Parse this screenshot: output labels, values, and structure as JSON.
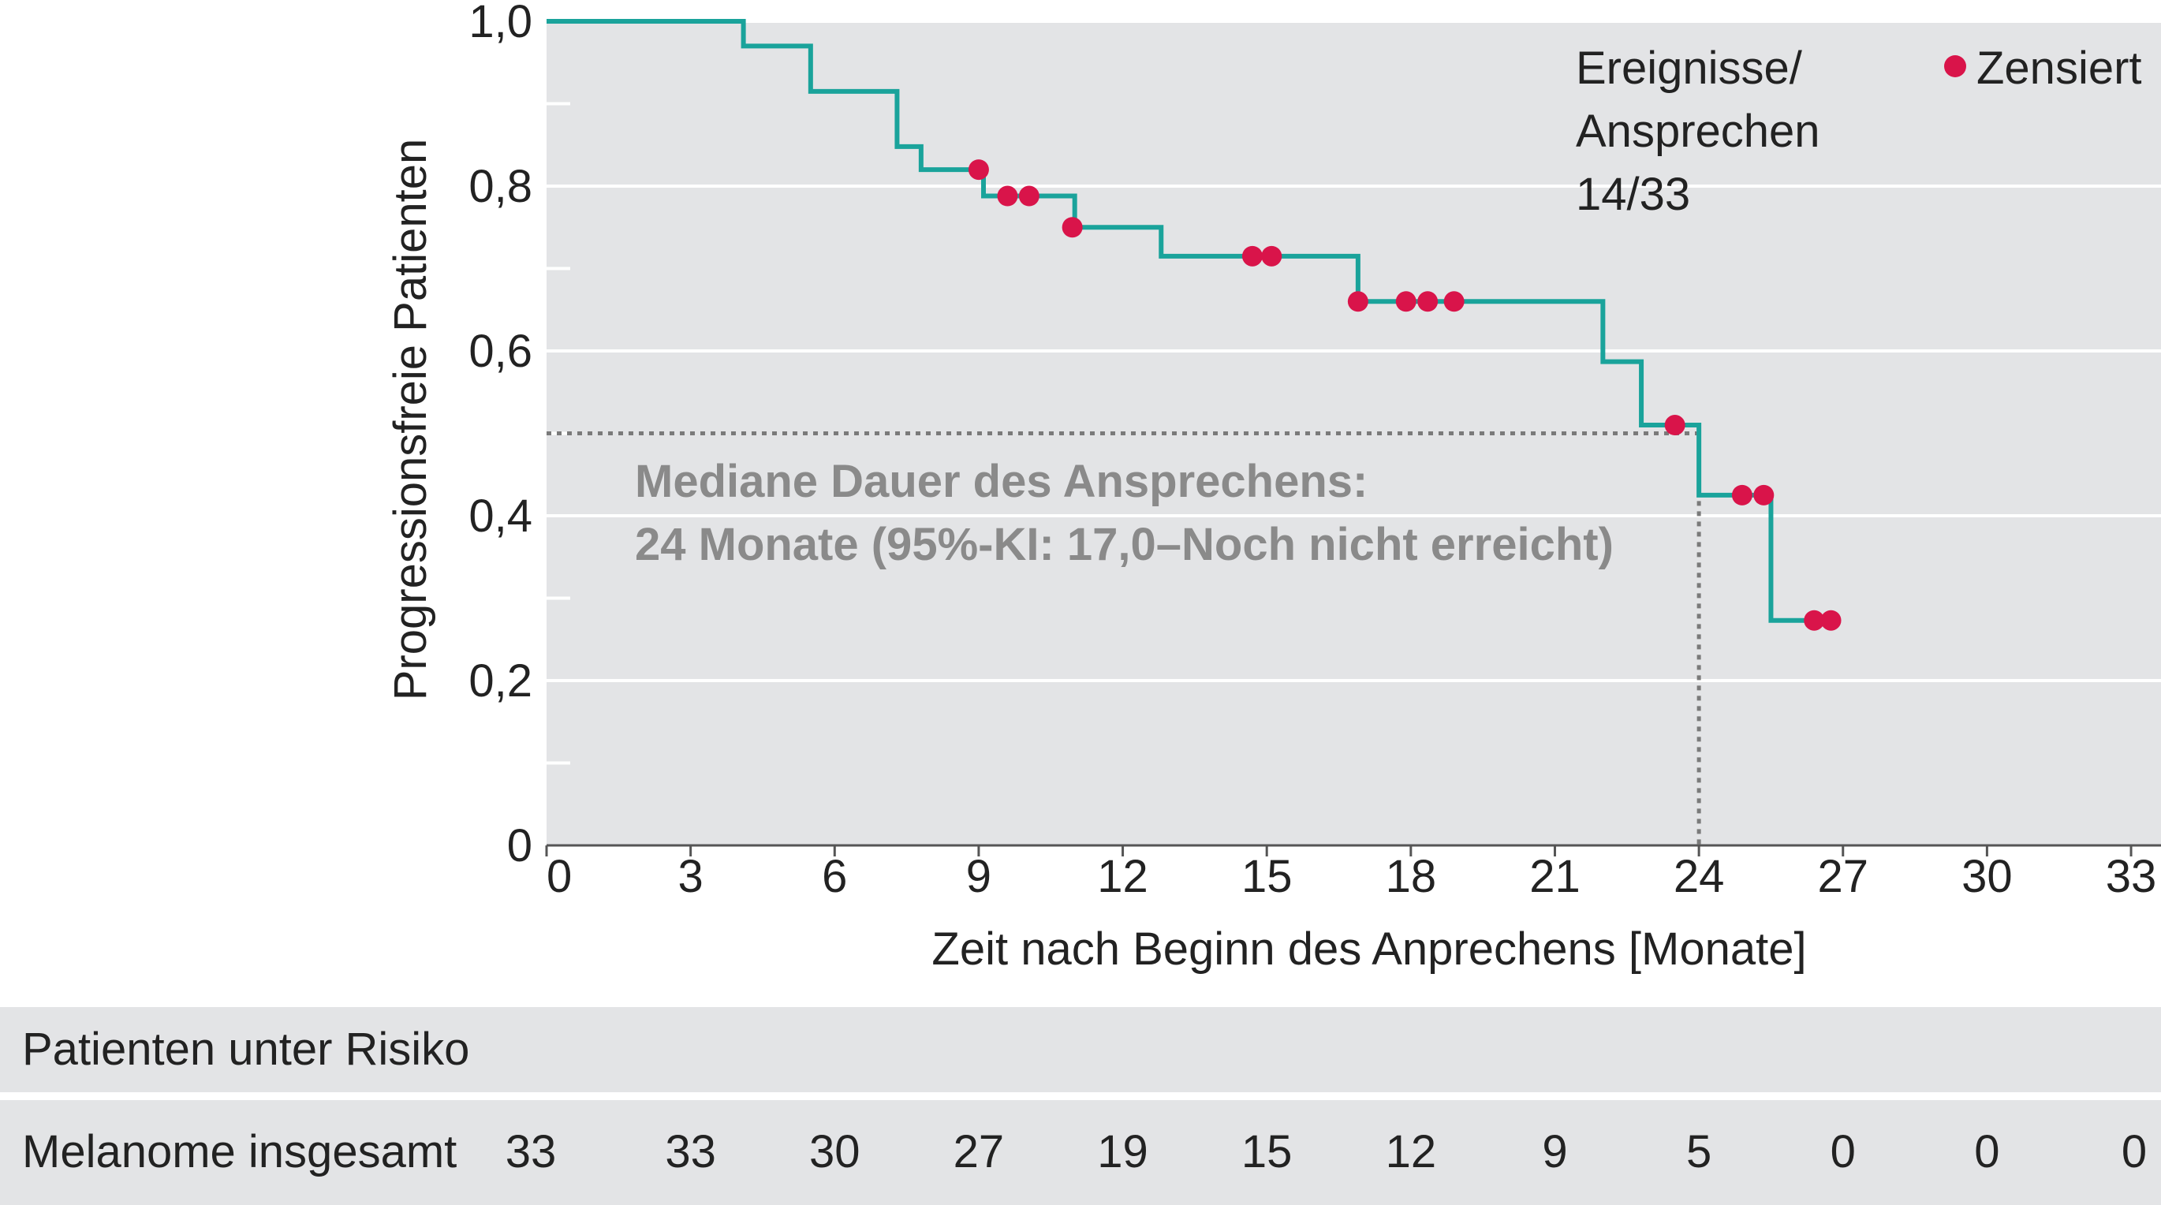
{
  "chart_data": {
    "type": "line",
    "xlabel": "Zeit nach Beginn des Anprechens [Monate]",
    "ylabel": "Progressionsfreie Patienten",
    "xlim": [
      0,
      33
    ],
    "ylim": [
      0,
      1.0
    ],
    "x_ticks": [
      0,
      3,
      6,
      9,
      12,
      15,
      18,
      21,
      24,
      27,
      30,
      33
    ],
    "x_tick_labels": [
      "0",
      "3",
      "6",
      "9",
      "12",
      "15",
      "18",
      "21",
      "24",
      "27",
      "30",
      "33"
    ],
    "y_ticks": [
      0,
      0.2,
      0.4,
      0.6,
      0.8,
      1.0
    ],
    "y_tick_labels": [
      "0",
      "0,2",
      "0,4",
      "0,6",
      "0,8",
      "1,0"
    ],
    "grid": true,
    "series": [
      {
        "kind": "step",
        "color": "#1aa39b",
        "x": [
          0,
          4.1,
          5.5,
          7.3,
          7.8,
          9.1,
          11.0,
          12.8,
          16.9,
          22.0,
          22.8,
          24.0,
          25.5,
          26.8
        ],
        "y": [
          1.0,
          0.97,
          0.915,
          0.848,
          0.82,
          0.788,
          0.75,
          0.715,
          0.66,
          0.587,
          0.51,
          0.425,
          0.273,
          0.273
        ]
      },
      {
        "name": "Zensiert",
        "kind": "scatter",
        "color": "#d9144a",
        "x": [
          9.0,
          9.6,
          10.05,
          10.95,
          14.7,
          15.1,
          16.9,
          17.9,
          18.35,
          18.9,
          23.5,
          24.9,
          25.35,
          26.4,
          26.75
        ],
        "y": [
          0.82,
          0.788,
          0.788,
          0.75,
          0.715,
          0.715,
          0.66,
          0.66,
          0.66,
          0.66,
          0.51,
          0.425,
          0.425,
          0.273,
          0.273
        ]
      }
    ],
    "median": {
      "x": 24,
      "y": 0.5
    },
    "annotations": {
      "events_label_1": "Ereignisse/",
      "events_label_2": "Ansprechen",
      "events_value": "14/33",
      "legend_label": "Zensiert",
      "median_line_1": "Mediane Dauer des Ansprechens:",
      "median_line_2": "24 Monate (95%-KI: 17,0–Noch nicht erreicht)"
    }
  },
  "risk_table": {
    "title": "Patienten unter Risiko",
    "row_label": "Melanome insgesamt",
    "values": [
      "33",
      "33",
      "30",
      "27",
      "19",
      "15",
      "12",
      "9",
      "5",
      "0",
      "0",
      "0"
    ]
  },
  "colors": {
    "plot_background": "#e3e4e6",
    "curve": "#1aa39b",
    "censored": "#d9144a",
    "median_line": "#7a7a7a",
    "median_text": "#8a8a8a"
  }
}
